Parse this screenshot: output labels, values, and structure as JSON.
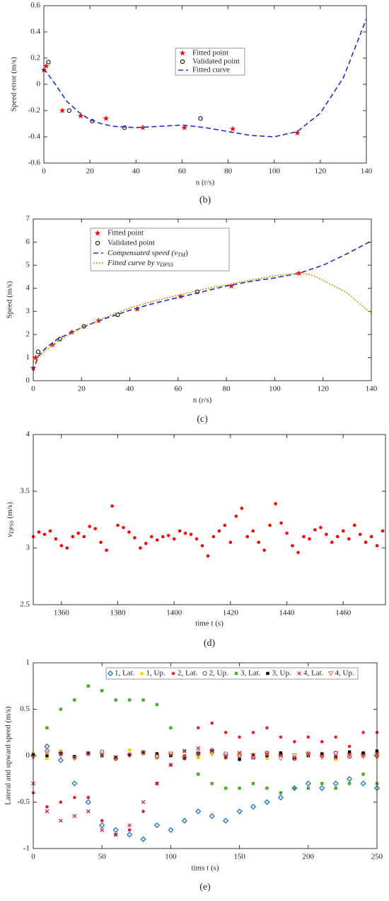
{
  "chart_data": [
    {
      "type": "line",
      "caption": "(b)",
      "ylabel": "Speed error (m/s)",
      "xlabel": "n (r/s)",
      "xlim": [
        0,
        140
      ],
      "ylim": [
        -0.6,
        0.6
      ],
      "xticks": [
        0,
        20,
        40,
        60,
        80,
        100,
        120,
        140
      ],
      "yticks": [
        -0.6,
        -0.4,
        -0.2,
        0,
        0.2,
        0.4,
        0.6
      ],
      "legend": "center",
      "series": [
        {
          "name": "Fitted point",
          "color": "#ff0000",
          "marker": "star",
          "x": [
            0,
            1,
            8,
            16,
            27,
            43,
            61,
            82,
            110
          ],
          "values": [
            0.11,
            0.14,
            -0.2,
            -0.24,
            -0.26,
            -0.33,
            -0.33,
            -0.34,
            -0.37
          ]
        },
        {
          "name": "Validated point",
          "color": "#000000",
          "marker": "circle",
          "x": [
            2,
            11,
            21,
            35,
            68
          ],
          "values": [
            0.17,
            -0.2,
            -0.28,
            -0.33,
            -0.26
          ]
        },
        {
          "name": "Fitted curve",
          "color": "#1f2fd0",
          "line": "dashed",
          "x": [
            0,
            5,
            10,
            15,
            20,
            25,
            30,
            40,
            50,
            60,
            70,
            80,
            90,
            100,
            110,
            120,
            130,
            140
          ],
          "values": [
            0.12,
            0.0,
            -0.13,
            -0.21,
            -0.27,
            -0.3,
            -0.32,
            -0.33,
            -0.32,
            -0.31,
            -0.33,
            -0.36,
            -0.39,
            -0.4,
            -0.36,
            -0.22,
            0.05,
            0.5
          ]
        }
      ]
    },
    {
      "type": "line",
      "caption": "(c)",
      "ylabel": "Speed (m/s)",
      "xlabel": "n (r/s)",
      "xlim": [
        0,
        140
      ],
      "ylim": [
        0,
        7
      ],
      "xticks": [
        0,
        20,
        40,
        60,
        80,
        100,
        120,
        140
      ],
      "yticks": [
        0,
        1,
        2,
        3,
        4,
        5,
        6,
        7
      ],
      "legend": "upper left",
      "series": [
        {
          "name": "Fitted point",
          "color": "#ff0000",
          "marker": "star",
          "x": [
            0,
            1,
            8,
            16,
            27,
            43,
            61,
            82,
            110
          ],
          "values": [
            0.55,
            1.0,
            1.55,
            2.1,
            2.6,
            3.1,
            3.65,
            4.1,
            4.65
          ]
        },
        {
          "name": "Validated point",
          "color": "#000000",
          "marker": "circle",
          "x": [
            2,
            11,
            21,
            35,
            68
          ],
          "values": [
            1.25,
            1.8,
            2.35,
            2.85,
            3.85
          ]
        },
        {
          "name": {
            "text": "Compensated speed (v",
            "sub": "TM",
            "tail": ")"
          },
          "color": "#1f2fd0",
          "line": "dashed",
          "x": [
            0,
            2,
            5,
            10,
            20,
            30,
            40,
            50,
            60,
            70,
            80,
            90,
            100,
            110,
            120,
            130,
            140
          ],
          "values": [
            0.4,
            1.05,
            1.4,
            1.8,
            2.3,
            2.7,
            3.05,
            3.35,
            3.6,
            3.85,
            4.1,
            4.3,
            4.45,
            4.65,
            5.0,
            5.5,
            6.05
          ]
        },
        {
          "name": {
            "text": "Fitted curve by v",
            "sub": "DPSS",
            "tail": ""
          },
          "color": "#e08a00",
          "line": "dotted",
          "x": [
            0,
            5,
            10,
            20,
            30,
            40,
            50,
            60,
            70,
            80,
            90,
            100,
            110,
            115,
            120,
            130,
            140
          ],
          "values": [
            0.8,
            1.3,
            1.7,
            2.3,
            2.75,
            3.15,
            3.45,
            3.7,
            3.95,
            4.15,
            4.35,
            4.55,
            4.65,
            4.6,
            4.35,
            3.8,
            2.9
          ]
        }
      ]
    },
    {
      "type": "scatter",
      "caption": "(d)",
      "ylabel": {
        "text": "v",
        "sub": "DPSS",
        "tail": " (m/s)"
      },
      "xlabel": "time  t (s)",
      "xlim": [
        1350,
        1475
      ],
      "ylim": [
        2.5,
        4
      ],
      "xticks": [
        1360,
        1380,
        1400,
        1420,
        1440,
        1460
      ],
      "yticks": [
        2.5,
        3,
        3.5,
        4
      ],
      "x": [
        1350,
        1352,
        1354,
        1356,
        1358,
        1360,
        1362,
        1364,
        1366,
        1368,
        1370,
        1372,
        1374,
        1376,
        1378,
        1380,
        1382,
        1384,
        1386,
        1388,
        1390,
        1392,
        1394,
        1396,
        1398,
        1400,
        1402,
        1404,
        1406,
        1408,
        1410,
        1412,
        1414,
        1416,
        1418,
        1420,
        1422,
        1424,
        1426,
        1428,
        1430,
        1432,
        1434,
        1436,
        1438,
        1440,
        1442,
        1444,
        1446,
        1448,
        1450,
        1452,
        1454,
        1456,
        1458,
        1460,
        1462,
        1464,
        1466,
        1468,
        1470,
        1472,
        1474
      ],
      "series": [
        {
          "color": "#ff0000",
          "marker": "dot",
          "values": [
            3.1,
            3.14,
            3.12,
            3.15,
            3.08,
            3.02,
            3.0,
            3.1,
            3.13,
            3.1,
            3.19,
            3.17,
            3.05,
            2.98,
            3.37,
            3.2,
            3.18,
            3.14,
            3.09,
            3.0,
            3.04,
            3.1,
            3.07,
            3.1,
            3.11,
            3.08,
            3.15,
            3.13,
            3.12,
            3.08,
            3.02,
            2.93,
            3.1,
            3.15,
            3.2,
            3.05,
            3.28,
            3.35,
            3.1,
            3.15,
            3.05,
            2.98,
            3.2,
            3.39,
            3.22,
            3.13,
            3.02,
            2.96,
            3.1,
            3.08,
            3.16,
            3.18,
            3.12,
            3.05,
            3.1,
            3.15,
            3.08,
            3.2,
            3.12,
            3.05,
            3.1,
            3.02,
            3.15
          ]
        }
      ]
    },
    {
      "type": "scatter",
      "caption": "(e)",
      "ylabel": "Lateral and upward speed (m/s)",
      "xlabel": "tims  t (s)",
      "xlim": [
        0,
        250
      ],
      "ylim": [
        -1,
        1
      ],
      "xticks": [
        0,
        50,
        100,
        150,
        200,
        250
      ],
      "yticks": [
        -1,
        -0.5,
        0,
        0.5,
        1
      ],
      "legend": "upper center",
      "x": [
        0,
        10,
        20,
        30,
        40,
        50,
        60,
        70,
        80,
        90,
        100,
        110,
        120,
        130,
        140,
        150,
        160,
        170,
        180,
        190,
        200,
        210,
        220,
        230,
        240,
        250
      ],
      "series": [
        {
          "name": "1, Lat.",
          "color": "#1a75c0",
          "marker": "diamond",
          "values": [
            0.0,
            0.1,
            -0.05,
            -0.3,
            -0.5,
            -0.75,
            -0.8,
            -0.85,
            -0.9,
            -0.75,
            -0.8,
            -0.7,
            -0.6,
            -0.65,
            -0.7,
            -0.6,
            -0.55,
            -0.5,
            -0.45,
            -0.35,
            -0.3,
            -0.35,
            -0.3,
            -0.25,
            -0.3,
            -0.35
          ]
        },
        {
          "name": "1, Up.",
          "color": "#f5d800",
          "marker": "square",
          "values": [
            0.02,
            -0.03,
            0.05,
            -0.02,
            0.03,
            0.0,
            -0.04,
            0.06,
            0.02,
            -0.03,
            0.01,
            0.0,
            -0.02,
            0.03,
            -0.01,
            0.02,
            0.0,
            -0.03,
            0.01,
            -0.02,
            0.03,
            0.0,
            -0.04,
            0.02,
            0.01,
            -0.02
          ]
        },
        {
          "name": "2, Lat.",
          "color": "#e8202a",
          "marker": "dot",
          "values": [
            -0.4,
            -0.55,
            -0.5,
            -0.45,
            -0.45,
            -0.7,
            -0.85,
            -0.8,
            -0.6,
            -0.3,
            -0.1,
            0.0,
            0.3,
            0.35,
            0.25,
            0.2,
            0.25,
            0.3,
            0.2,
            0.15,
            0.2,
            0.15,
            0.2,
            0.1,
            0.25,
            0.25
          ]
        },
        {
          "name": "2, Up.",
          "color": "#8a2da0",
          "marker": "circle",
          "values": [
            0.0,
            0.05,
            0.03,
            -0.02,
            0.02,
            0.04,
            -0.03,
            0.01,
            0.03,
            -0.01,
            0.02,
            -0.02,
            0.03,
            0.06,
            0.02,
            0.0,
            -0.02,
            0.03,
            0.01,
            -0.03,
            0.02,
            0.0,
            0.03,
            -0.01,
            0.02,
            0.0
          ]
        },
        {
          "name": "3, Lat.",
          "color": "#4caa2a",
          "marker": "square",
          "values": [
            0.0,
            0.3,
            0.5,
            0.6,
            0.75,
            0.7,
            0.6,
            0.6,
            0.6,
            0.55,
            0.3,
            0.05,
            -0.2,
            -0.3,
            -0.35,
            -0.35,
            -0.3,
            -0.35,
            -0.4,
            -0.35,
            -0.35,
            -0.3,
            -0.35,
            -0.3,
            -0.2,
            -0.3
          ]
        },
        {
          "name": "3, Up.",
          "color": "#000000",
          "marker": "square",
          "values": [
            0.01,
            0.0,
            0.02,
            -0.01,
            0.03,
            0.0,
            -0.02,
            0.01,
            0.04,
            0.02,
            0.0,
            -0.03,
            0.02,
            0.05,
            -0.02,
            -0.04,
            0.01,
            0.0,
            0.03,
            -0.02,
            0.0,
            0.02,
            -0.01,
            0.04,
            0.03,
            0.05
          ]
        },
        {
          "name": "4, Lat.",
          "color": "#c0185a",
          "marker": "x",
          "values": [
            -0.3,
            -0.6,
            -0.7,
            -0.65,
            -0.6,
            -0.8,
            -0.85,
            -0.75,
            -0.5,
            -0.3,
            -0.1,
            0.05,
            0.08,
            0.05,
            0.0,
            0.03,
            -0.02,
            0.02,
            0.0,
            -0.03,
            0.02,
            0.0,
            -0.02,
            0.01,
            0.0,
            0.02
          ]
        },
        {
          "name": "4, Up.",
          "color": "#f07040",
          "marker": "triangle",
          "values": [
            -0.02,
            0.03,
            0.0,
            -0.03,
            0.02,
            0.01,
            -0.02,
            0.0,
            0.03,
            -0.01,
            0.02,
            -0.03,
            0.0,
            0.02,
            -0.02,
            0.01,
            0.0,
            0.02,
            -0.03,
            0.0,
            0.01,
            -0.02,
            0.02,
            0.0,
            -0.01,
            0.01
          ]
        }
      ]
    }
  ]
}
